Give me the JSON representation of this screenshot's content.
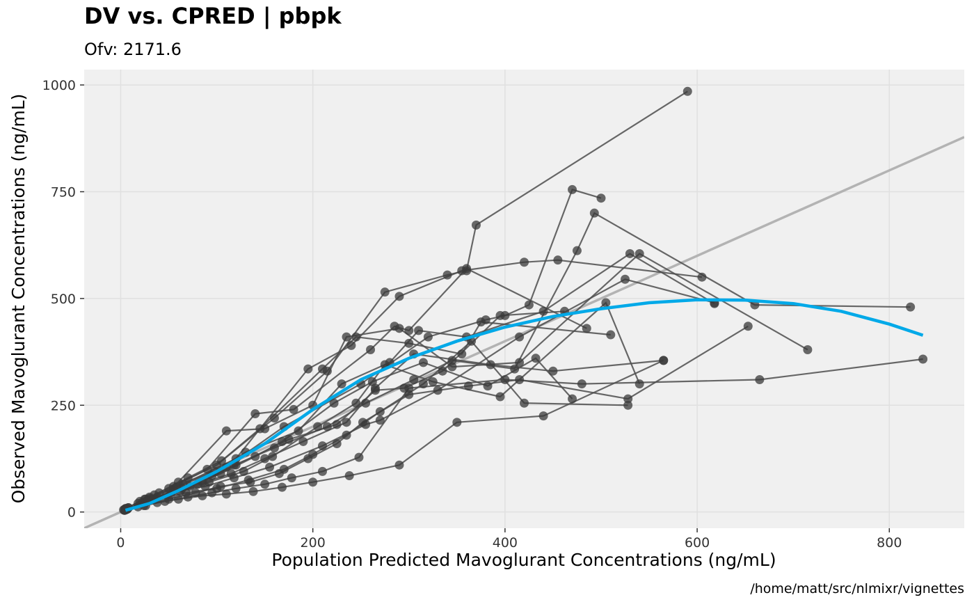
{
  "chart_data": {
    "type": "scatter",
    "title": "DV vs. CPRED | pbpk",
    "subtitle": "Ofv: 2171.6",
    "xlabel": "Population Predicted Mavoglurant Concentrations (ng/mL)",
    "ylabel": "Observed Mavoglurant Concentrations (ng/mL)",
    "caption": "/home/matt/src/nlmixr/vignettes",
    "xlim": [
      -38,
      878
    ],
    "ylim": [
      -38,
      1036
    ],
    "x_ticks": [
      0,
      200,
      400,
      600,
      800
    ],
    "y_ticks": [
      0,
      250,
      500,
      750,
      1000
    ],
    "x_tick_labels": [
      "0",
      "200",
      "400",
      "600",
      "800"
    ],
    "y_tick_labels": [
      "0",
      "250",
      "500",
      "750",
      "1000"
    ],
    "grid": true,
    "colors": {
      "panel_background": "#f0f0f0",
      "grid": "#e0e0e0",
      "points": "#3a3a3a",
      "lines": "#4d4d4d",
      "identity_line": "#b3b3b3",
      "smooth": "#00a9e8"
    },
    "identity_line": [
      [
        -38,
        -38
      ],
      [
        878,
        878
      ]
    ],
    "smooth": [
      [
        5,
        4
      ],
      [
        30,
        20
      ],
      [
        60,
        50
      ],
      [
        100,
        95
      ],
      [
        150,
        160
      ],
      [
        200,
        240
      ],
      [
        250,
        310
      ],
      [
        300,
        360
      ],
      [
        350,
        400
      ],
      [
        400,
        433
      ],
      [
        450,
        458
      ],
      [
        500,
        476
      ],
      [
        550,
        490
      ],
      [
        600,
        497
      ],
      [
        650,
        496
      ],
      [
        700,
        488
      ],
      [
        750,
        470
      ],
      [
        800,
        440
      ],
      [
        835,
        414
      ]
    ],
    "series": [
      {
        "x": [
          3,
          18,
          40,
          90,
          140,
          180,
          260,
          285,
          300,
          360,
          485
        ],
        "y": [
          5,
          20,
          45,
          100,
          230,
          240,
          380,
          435,
          425,
          570,
          430
        ]
      },
      {
        "x": [
          5,
          25,
          55,
          110,
          170,
          250,
          320,
          380,
          400,
          425,
          470,
          500
        ],
        "y": [
          8,
          30,
          60,
          105,
          200,
          300,
          410,
          450,
          460,
          485,
          755,
          735
        ]
      },
      {
        "x": [
          4,
          20,
          50,
          100,
          160,
          215,
          275,
          340,
          360,
          370,
          590
        ],
        "y": [
          6,
          25,
          55,
          110,
          220,
          330,
          515,
          555,
          565,
          672,
          985
        ]
      },
      {
        "x": [
          6,
          30,
          65,
          120,
          195,
          240,
          290,
          355,
          420,
          455,
          605
        ],
        "y": [
          8,
          35,
          65,
          125,
          335,
          390,
          505,
          565,
          585,
          590,
          550
        ]
      },
      {
        "x": [
          8,
          35,
          70,
          105,
          145,
          210,
          245,
          300,
          355,
          375,
          510
        ],
        "y": [
          10,
          40,
          80,
          120,
          195,
          335,
          410,
          395,
          370,
          445,
          415
        ]
      },
      {
        "x": [
          5,
          28,
          60,
          110,
          150,
          200,
          235,
          290,
          345,
          415,
          540,
          715
        ],
        "y": [
          5,
          28,
          70,
          190,
          195,
          250,
          410,
          430,
          340,
          350,
          605,
          380
        ]
      },
      {
        "x": [
          6,
          26,
          58,
          98,
          130,
          185,
          230,
          280,
          310,
          360,
          440,
          530,
          618
        ],
        "y": [
          6,
          30,
          58,
          95,
          140,
          190,
          300,
          350,
          425,
          410,
          470,
          605,
          488
        ]
      },
      {
        "x": [
          7,
          32,
          64,
          95,
          120,
          175,
          225,
          265,
          295,
          335,
          395,
          462
        ],
        "y": [
          7,
          30,
          55,
          85,
          110,
          170,
          205,
          285,
          290,
          330,
          460,
          470
        ]
      },
      {
        "x": [
          5,
          24,
          52,
          85,
          118,
          160,
          215,
          255,
          305,
          345,
          410,
          475,
          493,
          660,
          822
        ],
        "y": [
          8,
          22,
          40,
          70,
          110,
          150,
          200,
          255,
          310,
          355,
          335,
          612,
          700,
          485,
          480
        ]
      },
      {
        "x": [
          8,
          38,
          72,
          104,
          140,
          168,
          222,
          262,
          315,
          382,
          432,
          470
        ],
        "y": [
          10,
          35,
          60,
          90,
          130,
          165,
          255,
          305,
          350,
          295,
          360,
          265
        ]
      },
      {
        "x": [
          6,
          30,
          62,
          92,
          128,
          158,
          205,
          245,
          275,
          325,
          395,
          505,
          540
        ],
        "y": [
          6,
          32,
          48,
          70,
          95,
          130,
          200,
          255,
          345,
          305,
          270,
          490,
          300
        ]
      },
      {
        "x": [
          4,
          22,
          48,
          80,
          115,
          150,
          190,
          235,
          265,
          305,
          385,
          450,
          565
        ],
        "y": [
          4,
          22,
          40,
          65,
          90,
          125,
          165,
          210,
          290,
          370,
          345,
          330,
          355
        ]
      },
      {
        "x": [
          6,
          28,
          55,
          88,
          118,
          155,
          210,
          255,
          270,
          330,
          415,
          525,
          618
        ],
        "y": [
          6,
          25,
          50,
          60,
          80,
          105,
          155,
          205,
          215,
          285,
          410,
          545,
          490
        ]
      },
      {
        "x": [
          7,
          35,
          68,
          100,
          133,
          170,
          200,
          235,
          270,
          315,
          365,
          420,
          528
        ],
        "y": [
          7,
          30,
          45,
          55,
          75,
          100,
          135,
          180,
          235,
          300,
          400,
          255,
          250
        ]
      },
      {
        "x": [
          5,
          26,
          50,
          78,
          104,
          135,
          165,
          195,
          225,
          252,
          300,
          362,
          415,
          528,
          653
        ],
        "y": [
          5,
          15,
          30,
          45,
          60,
          70,
          90,
          125,
          160,
          210,
          275,
          295,
          310,
          265,
          435
        ]
      },
      {
        "x": [
          4,
          18,
          38,
          60,
          85,
          110,
          138,
          168,
          200,
          238,
          290,
          350,
          440,
          565
        ],
        "y": [
          4,
          12,
          22,
          30,
          38,
          42,
          48,
          58,
          70,
          85,
          110,
          210,
          225,
          355
        ]
      },
      {
        "x": [
          6,
          24,
          46,
          70,
          95,
          120,
          150,
          178,
          210,
          248,
          300,
          400,
          480,
          665,
          835
        ],
        "y": [
          6,
          15,
          25,
          35,
          45,
          55,
          65,
          80,
          95,
          128,
          290,
          310,
          300,
          310,
          358
        ]
      }
    ]
  }
}
